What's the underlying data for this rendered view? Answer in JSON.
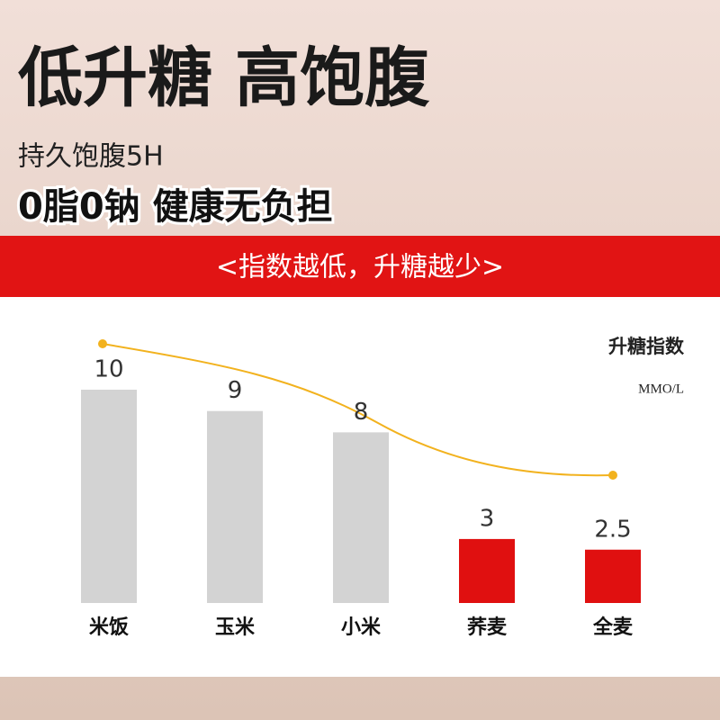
{
  "chart_data": {
    "type": "bar",
    "title": "低升糖 高饱腹",
    "subtitle": "持久饱腹5H",
    "tagline": "0脂0钠 健康无负担",
    "banner": "<指数越低，升糖越少>",
    "legend_label": "升糖指数",
    "unit": "MMO/L",
    "categories": [
      "米饭",
      "玉米",
      "小米",
      "荞麦",
      "全麦"
    ],
    "values": [
      10,
      9,
      8,
      3,
      2.5
    ],
    "colors": [
      "#d3d3d3",
      "#d3d3d3",
      "#d3d3d3",
      "#e01010",
      "#e01010"
    ]
  }
}
